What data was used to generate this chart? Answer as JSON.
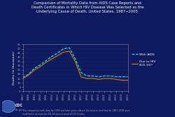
{
  "title_lines": [
    "Comparison of Mortality Data from AIDS Case Reports and",
    "Death Certificates in Which HIV Disease Was Selected as the",
    "Underlying Cause of Death, United States, 1987−2005"
  ],
  "years": [
    1987,
    1988,
    1989,
    1990,
    1991,
    1992,
    1993,
    1994,
    1995,
    1996,
    1997,
    1998,
    1999,
    2000,
    2001,
    2002,
    2003,
    2004,
    2005
  ],
  "with_aids": [
    16,
    20,
    27,
    31,
    36,
    41,
    45,
    50,
    51,
    38,
    22,
    18,
    18,
    17,
    18,
    18,
    17,
    17,
    17
  ],
  "due_to_hiv": [
    15,
    19,
    25,
    29,
    34,
    38,
    42,
    46,
    47,
    35,
    17,
    15,
    15,
    14,
    15,
    15,
    14,
    13,
    13
  ],
  "ylim": [
    0,
    55
  ],
  "yticks": [
    0,
    5,
    10,
    15,
    20,
    25,
    30,
    35,
    40,
    45,
    50,
    55
  ],
  "ylabel": "Deaths (in thousands)",
  "background_color": "#0d1b5e",
  "plot_bg_color": "#0d1b5e",
  "line_color_aids": "#00e8f0",
  "line_color_hiv": "#cc7700",
  "title_color": "#ffffff",
  "axis_color": "#8888aa",
  "tick_color": "#aaaacc",
  "label_color": "#ffffff",
  "footnote": "*For comparison with data for 1999 and later years, data in the bottom (red) line for 1987–1998 were\nmodified to account for ICD-10 rules instead of ICD-9 rules.",
  "legend_aids": "With AIDS",
  "legend_hiv": "Due to HIV\n(ICD-10)*"
}
